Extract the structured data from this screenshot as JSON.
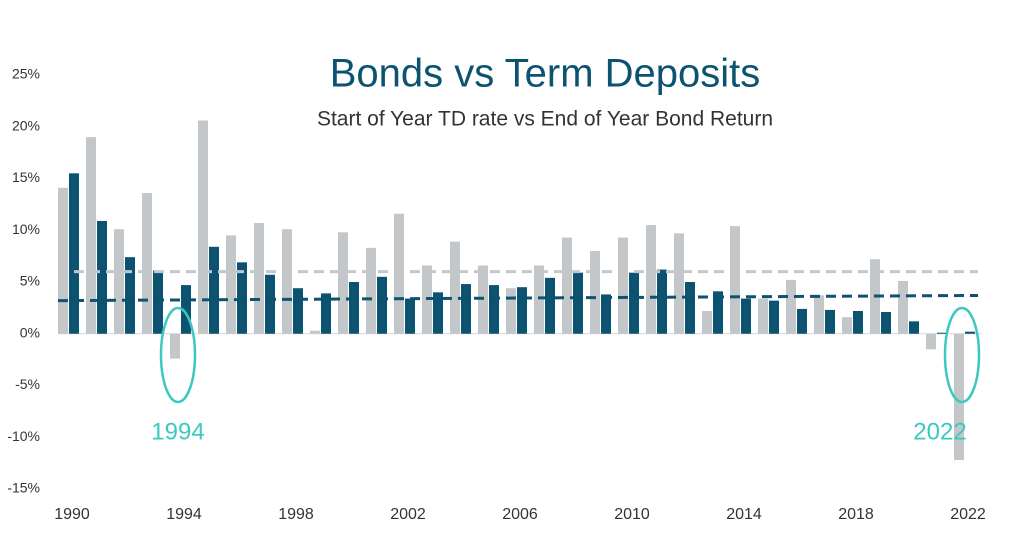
{
  "chart_data": {
    "type": "bar",
    "title": "Bonds vs Term Deposits",
    "subtitle": "Start of Year TD rate vs End of Year Bond Return",
    "categories": [
      "1990",
      null,
      null,
      null,
      "1994",
      null,
      null,
      null,
      "1998",
      null,
      null,
      null,
      "2002",
      null,
      null,
      null,
      "2006",
      null,
      null,
      null,
      "2010",
      null,
      null,
      null,
      "2014",
      null,
      null,
      null,
      "2018",
      null,
      null,
      null,
      "2022"
    ],
    "series": [
      {
        "color": "#c3c7c9",
        "values": [
          14.1,
          19.0,
          10.1,
          13.6,
          -2.4,
          20.6,
          9.5,
          10.7,
          10.1,
          0.3,
          9.8,
          8.3,
          11.6,
          6.6,
          8.9,
          6.6,
          4.4,
          6.6,
          9.3,
          8.0,
          9.3,
          10.5,
          9.7,
          2.2,
          10.4,
          3.4,
          5.2,
          3.7,
          1.6,
          7.2,
          5.1,
          -1.5,
          -12.2
        ]
      },
      {
        "color": "#0b5370",
        "values": [
          15.5,
          10.9,
          7.4,
          6.1,
          4.7,
          8.4,
          6.9,
          5.7,
          4.4,
          3.9,
          5.0,
          5.5,
          3.4,
          4.0,
          4.8,
          4.7,
          4.5,
          5.4,
          5.9,
          3.8,
          5.9,
          6.2,
          5.0,
          4.1,
          3.4,
          3.2,
          2.4,
          2.3,
          2.2,
          2.1,
          1.2,
          0.1,
          0.2
        ]
      }
    ],
    "trend_lines": [
      {
        "color": "#c3c7c9",
        "start": 6.0,
        "end": 6.0
      },
      {
        "color": "#0b5370",
        "start": 3.2,
        "end": 3.7
      }
    ],
    "annotations": [
      {
        "text": "1994",
        "color": "#3cc8c0"
      },
      {
        "text": "2022",
        "color": "#3cc8c0"
      }
    ],
    "ylim": [
      -15,
      25
    ],
    "yticks": [
      {
        "value": -15,
        "label": "-15%"
      },
      {
        "value": -10,
        "label": "-10%"
      },
      {
        "value": -5,
        "label": "-5%"
      },
      {
        "value": 0,
        "label": "0%"
      },
      {
        "value": 5,
        "label": "5%"
      },
      {
        "value": 10,
        "label": "10%"
      },
      {
        "value": 15,
        "label": "15%"
      },
      {
        "value": 20,
        "label": "20%"
      },
      {
        "value": 25,
        "label": "25%"
      }
    ]
  }
}
